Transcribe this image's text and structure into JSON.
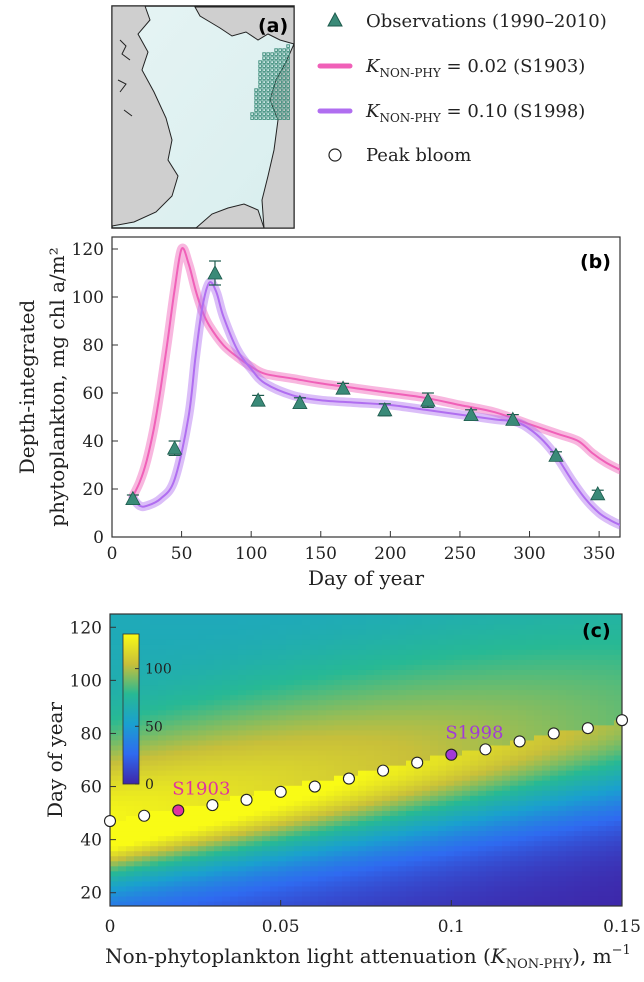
{
  "panels": {
    "a": "(a)",
    "b": "(b)",
    "c": "(c)"
  },
  "legend": {
    "obs": "Observations (1990–2010)",
    "s1903": {
      "sym": "K",
      "sub": "NON-PHY",
      "rest": " = 0.02 (S1903)"
    },
    "s1998": {
      "sym": "K",
      "sub": "NON-PHY",
      "rest": " = 0.10 (S1998)"
    },
    "peak": "Peak bloom"
  },
  "chart_data": [
    {
      "type": "map",
      "panel": "(a)",
      "colors": {
        "sea": "#dff0f0",
        "land": "#cfcfcf",
        "observations": "#3a8a78"
      }
    },
    {
      "type": "line",
      "panel": "(b)",
      "xlabel": "Day of year",
      "ylabel_line1": "Depth-integrated",
      "ylabel_line2": "phytoplankton, mg chl a/m²",
      "xlim": [
        0,
        365
      ],
      "ylim": [
        0,
        125
      ],
      "xticks": [
        0,
        50,
        100,
        150,
        200,
        250,
        300,
        350
      ],
      "yticks": [
        0,
        20,
        40,
        60,
        80,
        100,
        120
      ],
      "series": [
        {
          "name": "K NON-PHY = 0.02 (S1903)",
          "color": "#f060b8",
          "x": [
            15,
            20,
            25,
            30,
            35,
            40,
            45,
            50,
            55,
            60,
            65,
            70,
            80,
            90,
            100,
            110,
            130,
            150,
            175,
            200,
            225,
            250,
            275,
            300,
            320,
            335,
            345,
            355,
            365
          ],
          "y": [
            17,
            23,
            32,
            45,
            62,
            82,
            103,
            120,
            114,
            103,
            94,
            88,
            80,
            75,
            71,
            68,
            66,
            64,
            62,
            60,
            58,
            55,
            52,
            47,
            43,
            40,
            35,
            31,
            28
          ]
        },
        {
          "name": "K NON-PHY = 0.10 (S1998)",
          "color": "#b06ef0",
          "x": [
            15,
            20,
            25,
            35,
            45,
            55,
            60,
            65,
            70,
            75,
            80,
            90,
            100,
            110,
            130,
            150,
            175,
            200,
            225,
            250,
            275,
            290,
            300,
            310,
            320,
            330,
            340,
            350,
            358,
            365
          ],
          "y": [
            16,
            13,
            13,
            16,
            24,
            50,
            75,
            96,
            106,
            102,
            92,
            78,
            70,
            64,
            59,
            57,
            56,
            55,
            53,
            51,
            49,
            48,
            45,
            40,
            33,
            24,
            16,
            10,
            7,
            5
          ]
        }
      ],
      "observations": {
        "name": "Observations (1990–2010)",
        "color": "#3a8a78",
        "x": [
          15,
          45,
          74,
          105,
          135,
          166,
          196,
          227,
          258,
          288,
          319,
          349
        ],
        "y": [
          16,
          37,
          110,
          57,
          56,
          62,
          53,
          57,
          51,
          49,
          34,
          18
        ],
        "err": [
          1.5,
          3,
          5,
          2,
          2,
          2,
          2.5,
          3,
          2,
          2,
          1.5,
          1.5
        ]
      }
    },
    {
      "type": "heatmap",
      "panel": "(c)",
      "xlabel_pre": "Non-phytoplankton light attenuation (",
      "xlabel_sym": "K",
      "xlabel_sub": "NON-PHY",
      "xlabel_post": "), m",
      "xlabel_sup": "−1",
      "ylabel": "Day of year",
      "xlim": [
        0,
        0.15
      ],
      "ylim": [
        15,
        125
      ],
      "xticks": [
        0,
        0.05,
        0.1,
        0.15
      ],
      "xtick_labels": [
        "0",
        "0.05",
        "0.1",
        "0.15"
      ],
      "yticks": [
        20,
        40,
        60,
        80,
        100,
        120
      ],
      "colorbar": {
        "min": 0,
        "max": 130,
        "ticks": [
          0,
          50,
          100
        ]
      },
      "peak_bloom": {
        "x": [
          0,
          0.01,
          0.02,
          0.03,
          0.04,
          0.05,
          0.06,
          0.07,
          0.08,
          0.09,
          0.1,
          0.11,
          0.12,
          0.13,
          0.14,
          0.15
        ],
        "y": [
          47,
          49,
          51,
          53,
          55,
          58,
          60,
          63,
          66,
          69,
          72,
          74,
          77,
          80,
          82,
          85
        ]
      },
      "highlights": [
        {
          "label": "S1903",
          "x": 0.02,
          "y": 51,
          "color": "#e0339f"
        },
        {
          "label": "S1998",
          "x": 0.1,
          "y": 72,
          "color": "#a23bd6"
        }
      ]
    }
  ]
}
